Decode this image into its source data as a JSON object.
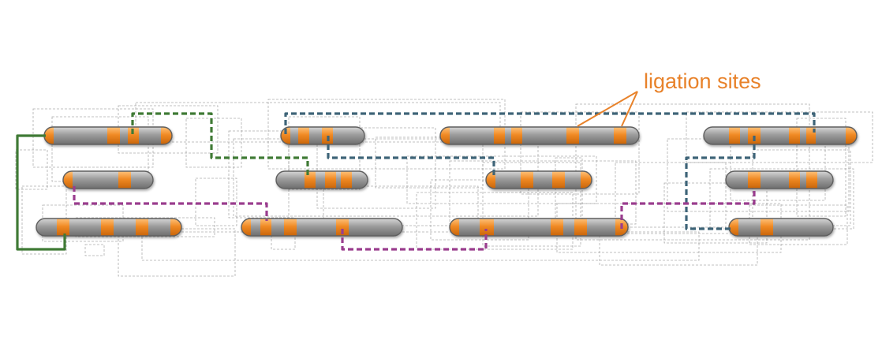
{
  "annotation": {
    "label": "ligation sites"
  },
  "colors": {
    "background": "#ffffff",
    "contig_body": "#9a9a9a",
    "contig_outline": "#5f5f5f",
    "ligation_site": "#f08a24",
    "annotation_text": "#e8822a",
    "background_links": "#9c9c9c",
    "path_green": "#3f7a35",
    "path_blue": "#3e6478",
    "path_purple": "#9a3d8e"
  },
  "icons": {
    "contig": "contig-bar-icon",
    "ligation_site": "orange-band-icon"
  },
  "highlighted_paths": [
    {
      "name": "green-scaffold-path",
      "color": "#3f7a35"
    },
    {
      "name": "blue-scaffold-path",
      "color": "#3e6478"
    },
    {
      "name": "purple-scaffold-path",
      "color": "#9a3d8e"
    }
  ]
}
